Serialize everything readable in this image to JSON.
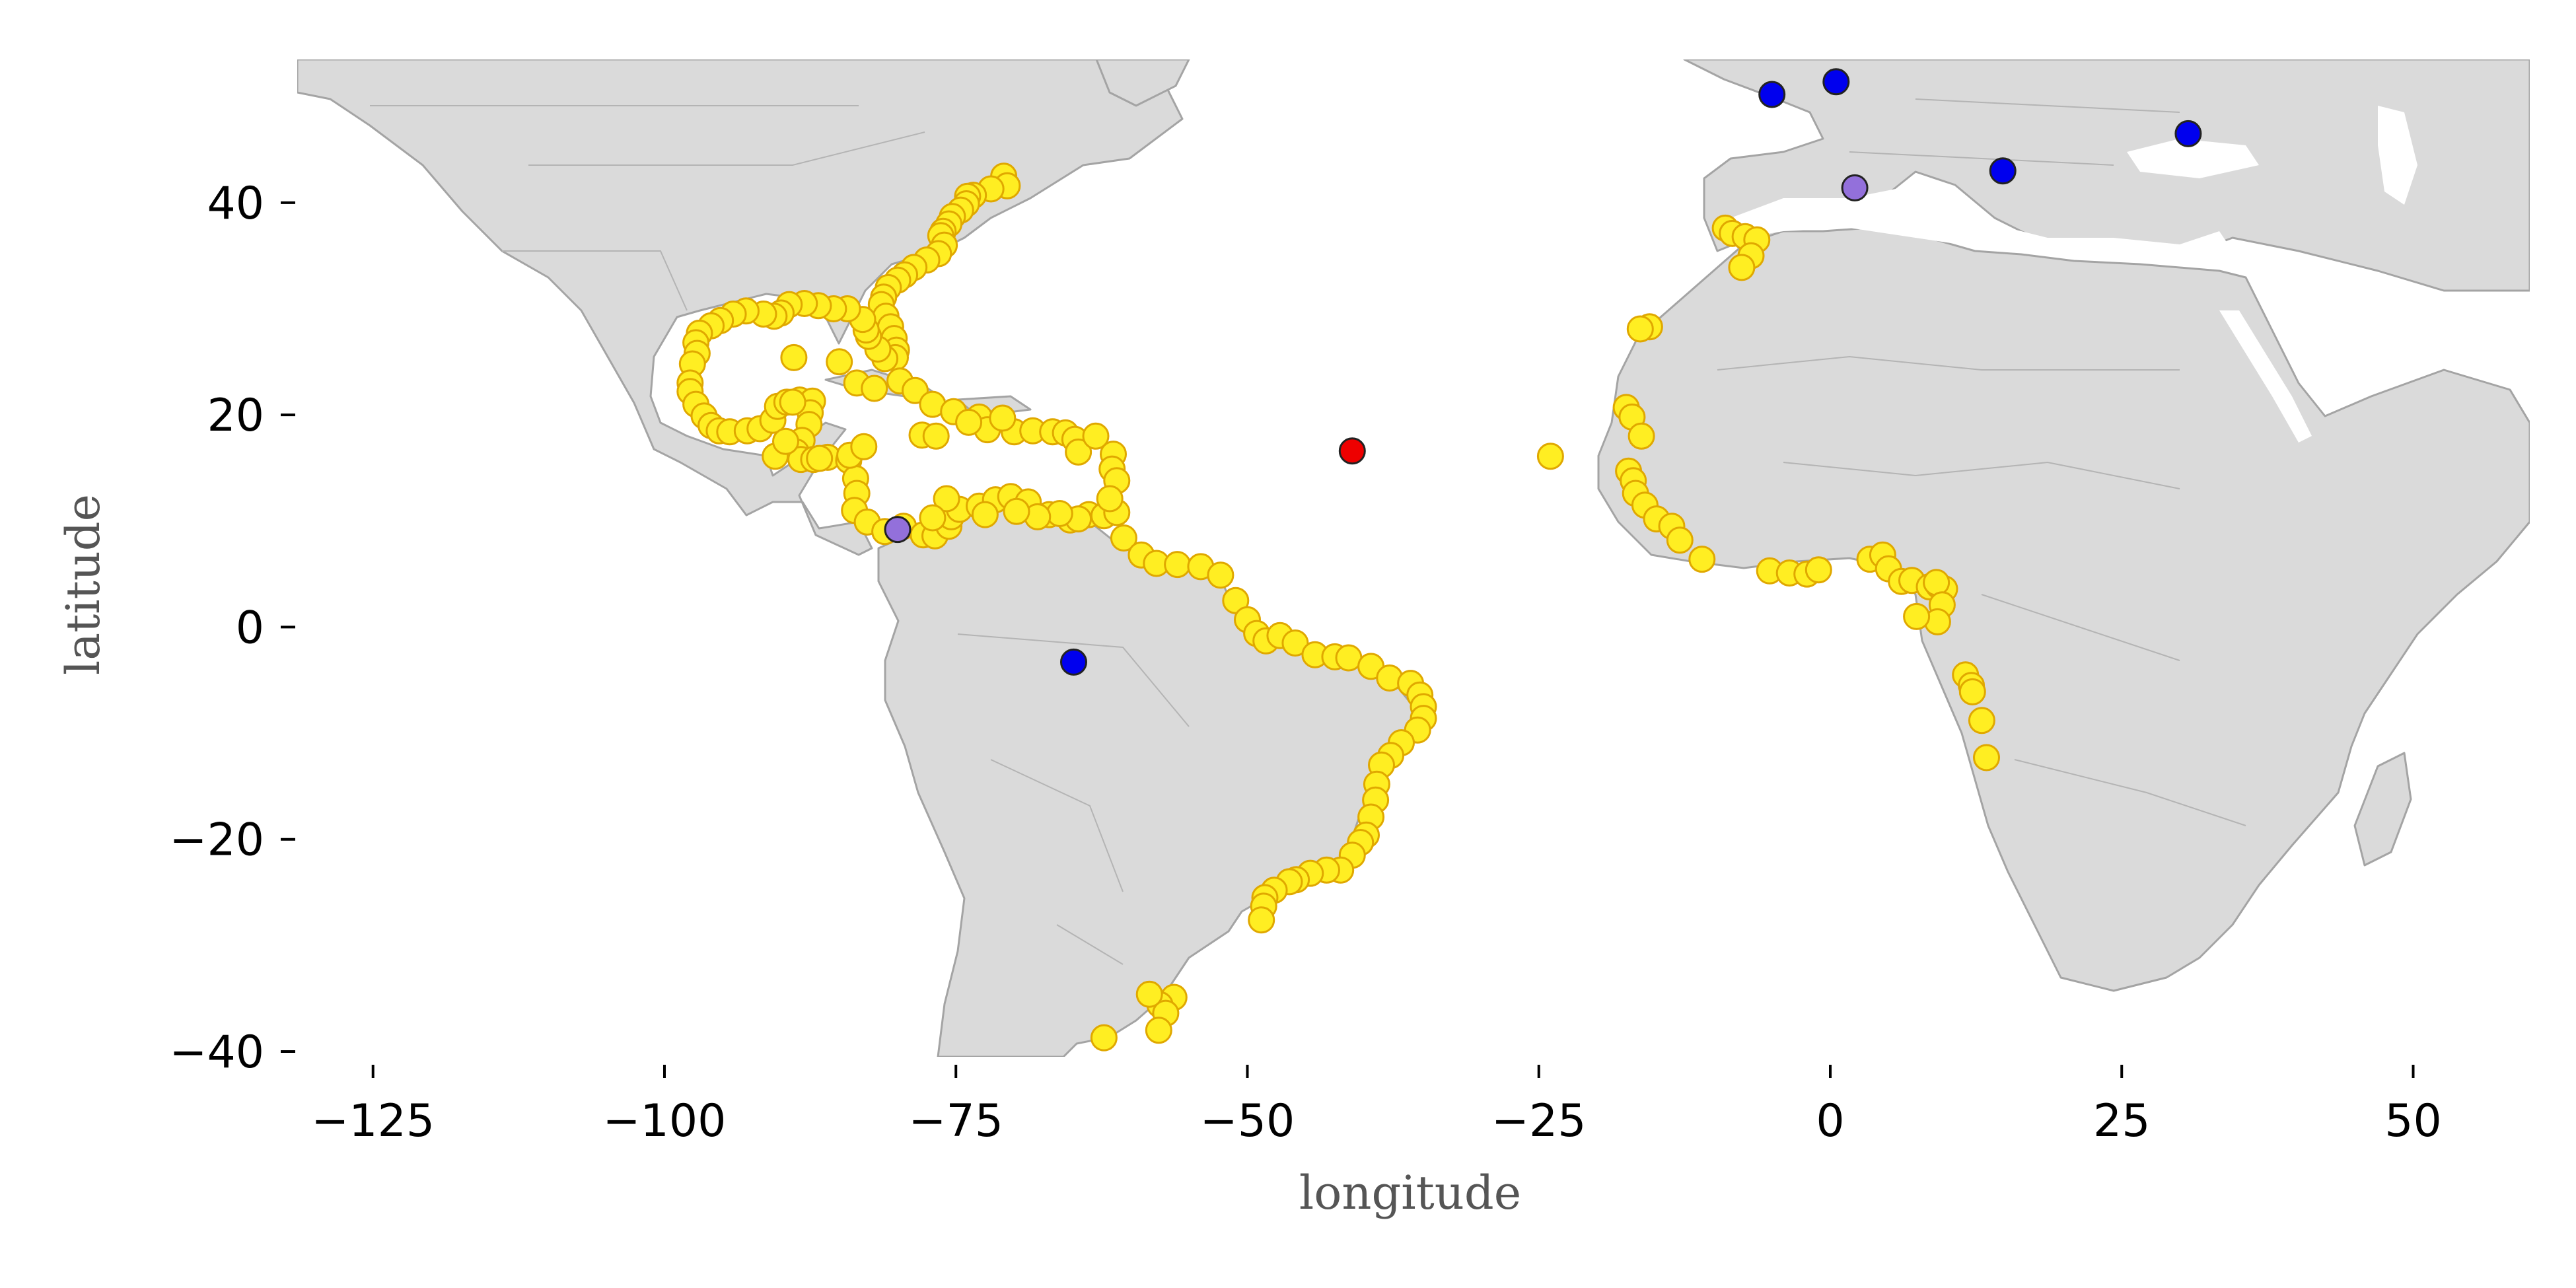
{
  "chart_data": {
    "type": "scatter",
    "xlabel": "longitude",
    "ylabel": "latitude",
    "xlim": [
      -131.5,
      60
    ],
    "ylim": [
      -40.5,
      53.5
    ],
    "xticks": [
      -125,
      -100,
      -75,
      -50,
      -25,
      0,
      25,
      50
    ],
    "yticks": [
      -40,
      -20,
      0,
      20,
      40
    ],
    "xtick_labels": [
      "−125",
      "−100",
      "−75",
      "−50",
      "−25",
      "0",
      "25",
      "50"
    ],
    "ytick_labels": [
      "−40",
      "−20",
      "0",
      "20",
      "40"
    ],
    "grid": false,
    "basemap": "world land with country and admin borders",
    "colors": {
      "land": "#dadada",
      "land_border": "#a4a4a4",
      "gold_fill": "#ffee22",
      "gold_edge": "#e0a800",
      "blue_fill": "#0000ee",
      "red_fill": "#ee0000",
      "purple_fill": "#9370db",
      "dark_edge": "#222222"
    },
    "series": [
      {
        "color": "#ffee22",
        "edge": "#e0a800",
        "points": [
          [
            -70.9,
            42.5
          ],
          [
            -70.6,
            41.6
          ],
          [
            -72.0,
            41.3
          ],
          [
            -73.5,
            40.7
          ],
          [
            -74.0,
            40.6
          ],
          [
            -74.1,
            39.9
          ],
          [
            -74.6,
            39.3
          ],
          [
            -75.3,
            38.7
          ],
          [
            -75.6,
            38.0
          ],
          [
            -76.1,
            37.3
          ],
          [
            -76.3,
            36.9
          ],
          [
            -76.0,
            36.0
          ],
          [
            -76.5,
            35.2
          ],
          [
            -77.5,
            34.6
          ],
          [
            -78.6,
            33.9
          ],
          [
            -79.4,
            33.2
          ],
          [
            -80.0,
            32.7
          ],
          [
            -80.8,
            32.0
          ],
          [
            -81.2,
            31.1
          ],
          [
            -81.4,
            30.4
          ],
          [
            -81.0,
            29.3
          ],
          [
            -80.6,
            28.3
          ],
          [
            -80.3,
            27.2
          ],
          [
            -80.1,
            26.1
          ],
          [
            -80.2,
            25.4
          ],
          [
            -81.1,
            25.3
          ],
          [
            -81.7,
            26.2
          ],
          [
            -82.5,
            27.4
          ],
          [
            -82.7,
            28.0
          ],
          [
            -83.0,
            29.0
          ],
          [
            -84.3,
            30.0
          ],
          [
            -85.5,
            30.0
          ],
          [
            -86.8,
            30.3
          ],
          [
            -88.0,
            30.5
          ],
          [
            -89.3,
            30.4
          ],
          [
            -90.0,
            29.6
          ],
          [
            -90.6,
            29.3
          ],
          [
            -91.5,
            29.5
          ],
          [
            -93.0,
            29.8
          ],
          [
            -94.1,
            29.5
          ],
          [
            -95.2,
            28.9
          ],
          [
            -96.0,
            28.4
          ],
          [
            -97.0,
            27.7
          ],
          [
            -97.3,
            26.8
          ],
          [
            -97.2,
            25.8
          ],
          [
            -97.6,
            24.8
          ],
          [
            -97.8,
            23.0
          ],
          [
            -97.8,
            22.2
          ],
          [
            -97.3,
            21.0
          ],
          [
            -96.6,
            19.9
          ],
          [
            -96.0,
            19.0
          ],
          [
            -95.3,
            18.5
          ],
          [
            -94.4,
            18.4
          ],
          [
            -92.9,
            18.5
          ],
          [
            -91.8,
            18.7
          ],
          [
            -90.7,
            19.5
          ],
          [
            -90.3,
            20.8
          ],
          [
            -89.5,
            21.2
          ],
          [
            -88.4,
            21.4
          ],
          [
            -87.3,
            21.3
          ],
          [
            -87.5,
            20.2
          ],
          [
            -87.6,
            19.1
          ],
          [
            -88.2,
            17.6
          ],
          [
            -88.7,
            16.5
          ],
          [
            -88.3,
            15.8
          ],
          [
            -87.2,
            15.8
          ],
          [
            -86.0,
            16.0
          ],
          [
            -84.2,
            15.7
          ],
          [
            -83.6,
            14.0
          ],
          [
            -83.5,
            12.6
          ],
          [
            -83.7,
            11.0
          ],
          [
            -82.6,
            9.9
          ],
          [
            -81.1,
            9.0
          ],
          [
            -79.5,
            9.5
          ],
          [
            -77.8,
            8.7
          ],
          [
            -76.8,
            8.6
          ],
          [
            -75.6,
            9.5
          ],
          [
            -75.4,
            10.4
          ],
          [
            -74.7,
            11.1
          ],
          [
            -73.0,
            11.4
          ],
          [
            -71.6,
            12.0
          ],
          [
            -70.3,
            12.3
          ],
          [
            -68.8,
            11.8
          ],
          [
            -67.0,
            10.6
          ],
          [
            -65.2,
            10.1
          ],
          [
            -63.6,
            10.6
          ],
          [
            -62.3,
            10.5
          ],
          [
            -61.2,
            10.8
          ],
          [
            -60.6,
            8.4
          ],
          [
            -59.1,
            6.8
          ],
          [
            -57.8,
            6.0
          ],
          [
            -56.0,
            5.9
          ],
          [
            -54.0,
            5.7
          ],
          [
            -52.3,
            4.9
          ],
          [
            -51.0,
            2.5
          ],
          [
            -50.0,
            0.7
          ],
          [
            -49.2,
            -0.6
          ],
          [
            -48.4,
            -1.3
          ],
          [
            -47.2,
            -0.8
          ],
          [
            -45.9,
            -1.5
          ],
          [
            -44.2,
            -2.6
          ],
          [
            -42.5,
            -2.8
          ],
          [
            -41.3,
            -2.9
          ],
          [
            -39.4,
            -3.7
          ],
          [
            -37.8,
            -4.8
          ],
          [
            -36.0,
            -5.3
          ],
          [
            -35.2,
            -6.4
          ],
          [
            -34.9,
            -7.5
          ],
          [
            -34.9,
            -8.6
          ],
          [
            -35.4,
            -9.7
          ],
          [
            -36.8,
            -10.9
          ],
          [
            -37.7,
            -12.1
          ],
          [
            -38.5,
            -13.0
          ],
          [
            -38.9,
            -14.8
          ],
          [
            -39.0,
            -16.3
          ],
          [
            -39.4,
            -17.9
          ],
          [
            -39.8,
            -19.6
          ],
          [
            -40.3,
            -20.3
          ],
          [
            -41.0,
            -21.5
          ],
          [
            -42.0,
            -22.9
          ],
          [
            -43.2,
            -22.9
          ],
          [
            -44.6,
            -23.2
          ],
          [
            -45.8,
            -23.8
          ],
          [
            -46.4,
            -24.0
          ],
          [
            -47.7,
            -24.8
          ],
          [
            -48.5,
            -25.5
          ],
          [
            -48.6,
            -26.3
          ],
          [
            -48.8,
            -27.6
          ],
          [
            -56.3,
            -34.9
          ],
          [
            -57.5,
            -35.6
          ],
          [
            -58.4,
            -34.6
          ],
          [
            -57.0,
            -36.4
          ],
          [
            -57.6,
            -38.0
          ],
          [
            -62.3,
            -38.7
          ],
          [
            -88.9,
            25.4
          ],
          [
            -85.0,
            25.0
          ],
          [
            -83.5,
            23.0
          ],
          [
            -82.0,
            22.5
          ],
          [
            -79.8,
            23.2
          ],
          [
            -78.5,
            22.3
          ],
          [
            -77.0,
            21.0
          ],
          [
            -75.2,
            20.3
          ],
          [
            -73.0,
            19.8
          ],
          [
            -72.3,
            18.6
          ],
          [
            -70.0,
            18.4
          ],
          [
            -68.4,
            18.5
          ],
          [
            -66.7,
            18.4
          ],
          [
            -65.6,
            18.3
          ],
          [
            -64.8,
            17.7
          ],
          [
            -64.5,
            16.5
          ],
          [
            -63.0,
            18.0
          ],
          [
            -61.5,
            16.3
          ],
          [
            -61.6,
            14.9
          ],
          [
            -61.2,
            13.8
          ],
          [
            -61.8,
            12.1
          ],
          [
            -77.9,
            18.1
          ],
          [
            -76.7,
            18.0
          ],
          [
            -73.9,
            19.3
          ],
          [
            -71.0,
            19.7
          ],
          [
            -89.0,
            21.2
          ],
          [
            -90.5,
            16.1
          ],
          [
            -89.6,
            17.5
          ],
          [
            -86.7,
            15.9
          ],
          [
            -84.1,
            16.2
          ],
          [
            -82.9,
            17.0
          ],
          [
            -72.5,
            10.6
          ],
          [
            -75.8,
            12.1
          ],
          [
            -77.0,
            10.3
          ],
          [
            -64.5,
            10.2
          ],
          [
            -66.1,
            10.7
          ],
          [
            -68.0,
            10.4
          ],
          [
            -69.8,
            10.9
          ],
          [
            -9.0,
            37.6
          ],
          [
            -8.4,
            37.1
          ],
          [
            -7.3,
            36.8
          ],
          [
            -6.3,
            36.5
          ],
          [
            -6.8,
            35.0
          ],
          [
            -7.6,
            33.9
          ],
          [
            -15.5,
            28.3
          ],
          [
            -16.3,
            28.1
          ],
          [
            -24.0,
            16.1
          ],
          [
            -17.5,
            20.7
          ],
          [
            -17.0,
            19.8
          ],
          [
            -16.2,
            18.0
          ],
          [
            -17.3,
            14.7
          ],
          [
            -16.9,
            13.8
          ],
          [
            -16.7,
            12.6
          ],
          [
            -15.9,
            11.5
          ],
          [
            -14.9,
            10.2
          ],
          [
            -13.6,
            9.5
          ],
          [
            -12.9,
            8.2
          ],
          [
            -11.0,
            6.4
          ],
          [
            -5.2,
            5.3
          ],
          [
            -3.5,
            5.1
          ],
          [
            -2.0,
            5.0
          ],
          [
            -1.0,
            5.4
          ],
          [
            3.4,
            6.4
          ],
          [
            4.5,
            6.8
          ],
          [
            5.0,
            5.5
          ],
          [
            6.1,
            4.3
          ],
          [
            7.0,
            4.4
          ],
          [
            8.5,
            3.8
          ],
          [
            9.3,
            3.9
          ],
          [
            9.8,
            3.6
          ],
          [
            9.1,
            4.2
          ],
          [
            9.6,
            2.1
          ],
          [
            9.2,
            0.5
          ],
          [
            7.4,
            1.0
          ],
          [
            11.6,
            -4.5
          ],
          [
            12.1,
            -5.5
          ],
          [
            12.2,
            -6.1
          ],
          [
            13.0,
            -8.8
          ],
          [
            13.4,
            -12.3
          ]
        ]
      },
      {
        "color": "#0000ee",
        "edge": "#222222",
        "points": [
          [
            -5.0,
            50.2
          ],
          [
            0.5,
            51.4
          ],
          [
            14.8,
            43.0
          ],
          [
            30.7,
            46.5
          ],
          [
            -64.9,
            -3.3
          ]
        ]
      },
      {
        "color": "#ee0000",
        "edge": "#222222",
        "points": [
          [
            -41.0,
            16.6
          ]
        ]
      },
      {
        "color": "#9370db",
        "edge": "#222222",
        "points": [
          [
            2.1,
            41.4
          ],
          [
            -80.0,
            9.2
          ]
        ]
      }
    ]
  }
}
